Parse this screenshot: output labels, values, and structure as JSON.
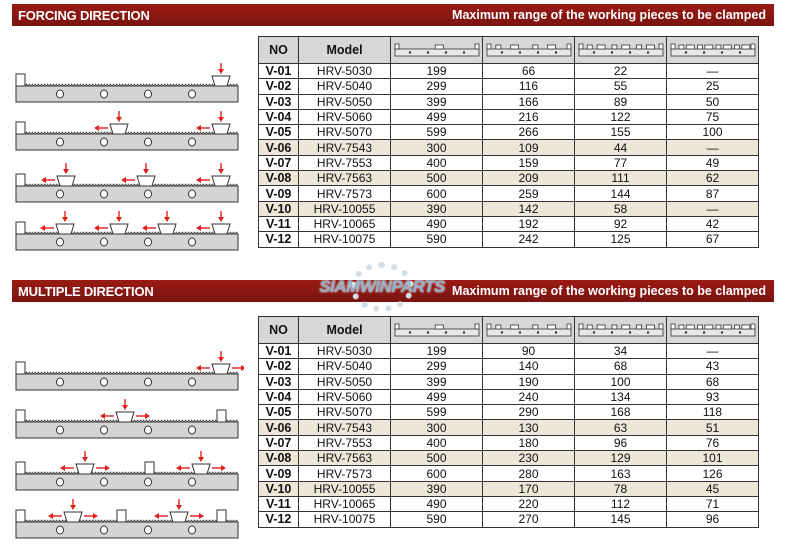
{
  "forcing": {
    "title": "FORCING DIRECTION",
    "subtitle": "Maximum range of the working pieces to be clamped",
    "columns": [
      "NO",
      "Model"
    ],
    "rows": [
      {
        "no": "V-01",
        "model": "HRV-5030",
        "v": [
          "199",
          "66",
          "22",
          "—"
        ]
      },
      {
        "no": "V-02",
        "model": "HRV-5040",
        "v": [
          "299",
          "116",
          "55",
          "25"
        ]
      },
      {
        "no": "V-03",
        "model": "HRV-5050",
        "v": [
          "399",
          "166",
          "89",
          "50"
        ]
      },
      {
        "no": "V-04",
        "model": "HRV-5060",
        "v": [
          "499",
          "216",
          "122",
          "75"
        ]
      },
      {
        "no": "V-05",
        "model": "HRV-5070",
        "v": [
          "599",
          "266",
          "155",
          "100"
        ]
      },
      {
        "no": "V-06",
        "model": "HRV-7543",
        "v": [
          "300",
          "109",
          "44",
          "—"
        ]
      },
      {
        "no": "V-07",
        "model": "HRV-7553",
        "v": [
          "400",
          "159",
          "77",
          "49"
        ]
      },
      {
        "no": "V-08",
        "model": "HRV-7563",
        "v": [
          "500",
          "209",
          "111",
          "62"
        ]
      },
      {
        "no": "V-09",
        "model": "HRV-7573",
        "v": [
          "600",
          "259",
          "144",
          "87"
        ]
      },
      {
        "no": "V-10",
        "model": "HRV-10055",
        "v": [
          "390",
          "142",
          "58",
          "—"
        ]
      },
      {
        "no": "V-11",
        "model": "HRV-10065",
        "v": [
          "490",
          "192",
          "92",
          "42"
        ]
      },
      {
        "no": "V-12",
        "model": "HRV-10075",
        "v": [
          "590",
          "242",
          "125",
          "67"
        ]
      }
    ]
  },
  "multiple": {
    "title": "MULTIPLE DIRECTION",
    "subtitle": "Maximum range of the working pieces to be clamped",
    "watermark": "SIAMWINPARTS",
    "columns": [
      "NO",
      "Model"
    ],
    "rows": [
      {
        "no": "V-01",
        "model": "HRV-5030",
        "v": [
          "199",
          "90",
          "34",
          "—"
        ]
      },
      {
        "no": "V-02",
        "model": "HRV-5040",
        "v": [
          "299",
          "140",
          "68",
          "43"
        ]
      },
      {
        "no": "V-03",
        "model": "HRV-5050",
        "v": [
          "399",
          "190",
          "100",
          "68"
        ]
      },
      {
        "no": "V-04",
        "model": "HRV-5060",
        "v": [
          "499",
          "240",
          "134",
          "93"
        ]
      },
      {
        "no": "V-05",
        "model": "HRV-5070",
        "v": [
          "599",
          "290",
          "168",
          "118"
        ]
      },
      {
        "no": "V-06",
        "model": "HRV-7543",
        "v": [
          "300",
          "130",
          "63",
          "51"
        ]
      },
      {
        "no": "V-07",
        "model": "HRV-7553",
        "v": [
          "400",
          "180",
          "96",
          "76"
        ]
      },
      {
        "no": "V-08",
        "model": "HRV-7563",
        "v": [
          "500",
          "230",
          "129",
          "101"
        ]
      },
      {
        "no": "V-09",
        "model": "HRV-7573",
        "v": [
          "600",
          "280",
          "163",
          "126"
        ]
      },
      {
        "no": "V-10",
        "model": "HRV-10055",
        "v": [
          "390",
          "170",
          "78",
          "45"
        ]
      },
      {
        "no": "V-11",
        "model": "HRV-10065",
        "v": [
          "490",
          "220",
          "112",
          "71"
        ]
      },
      {
        "no": "V-12",
        "model": "HRV-10075",
        "v": [
          "590",
          "270",
          "145",
          "96"
        ]
      }
    ]
  },
  "colors": {
    "header_bar": "#8b1812",
    "shade_row": "#ede7da",
    "arrow": "#e0201c",
    "rail": "#cfcfcf"
  }
}
